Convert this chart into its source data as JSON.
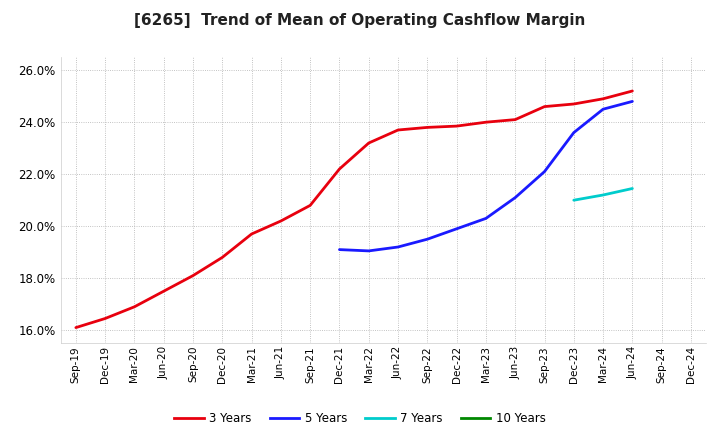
{
  "title": "[6265]  Trend of Mean of Operating Cashflow Margin",
  "background_color": "#ffffff",
  "plot_bg_color": "#ffffff",
  "grid_color": "#b0b0b0",
  "ylim": [
    0.155,
    0.265
  ],
  "yticks": [
    0.16,
    0.18,
    0.2,
    0.22,
    0.24,
    0.26
  ],
  "x_labels": [
    "Sep-19",
    "Dec-19",
    "Mar-20",
    "Jun-20",
    "Sep-20",
    "Dec-20",
    "Mar-21",
    "Jun-21",
    "Sep-21",
    "Dec-21",
    "Mar-22",
    "Jun-22",
    "Sep-22",
    "Dec-22",
    "Mar-23",
    "Jun-23",
    "Sep-23",
    "Dec-23",
    "Mar-24",
    "Jun-24",
    "Sep-24",
    "Dec-24"
  ],
  "series": {
    "3 Years": {
      "color": "#e8000e",
      "linewidth": 2.0,
      "values": [
        0.161,
        0.1645,
        0.169,
        0.175,
        0.181,
        0.188,
        0.197,
        0.202,
        0.208,
        0.222,
        0.232,
        0.237,
        0.238,
        0.2385,
        0.24,
        0.241,
        0.246,
        0.247,
        0.249,
        0.252,
        null,
        null
      ]
    },
    "5 Years": {
      "color": "#1a1aff",
      "linewidth": 2.0,
      "values": [
        null,
        null,
        null,
        null,
        null,
        null,
        null,
        null,
        null,
        0.191,
        0.1905,
        0.192,
        0.195,
        0.199,
        0.203,
        0.211,
        0.221,
        0.236,
        0.245,
        0.248,
        null,
        null
      ]
    },
    "7 Years": {
      "color": "#00cccc",
      "linewidth": 2.0,
      "values": [
        null,
        null,
        null,
        null,
        null,
        null,
        null,
        null,
        null,
        null,
        null,
        null,
        null,
        null,
        null,
        null,
        null,
        0.21,
        0.212,
        0.2145,
        null,
        null
      ]
    },
    "10 Years": {
      "color": "#008800",
      "linewidth": 2.0,
      "values": [
        null,
        null,
        null,
        null,
        null,
        null,
        null,
        null,
        null,
        null,
        null,
        null,
        null,
        null,
        null,
        null,
        null,
        null,
        null,
        null,
        null,
        null
      ]
    }
  },
  "legend_order": [
    "3 Years",
    "5 Years",
    "7 Years",
    "10 Years"
  ],
  "legend_colors": [
    "#e8000e",
    "#1a1aff",
    "#00cccc",
    "#008800"
  ]
}
